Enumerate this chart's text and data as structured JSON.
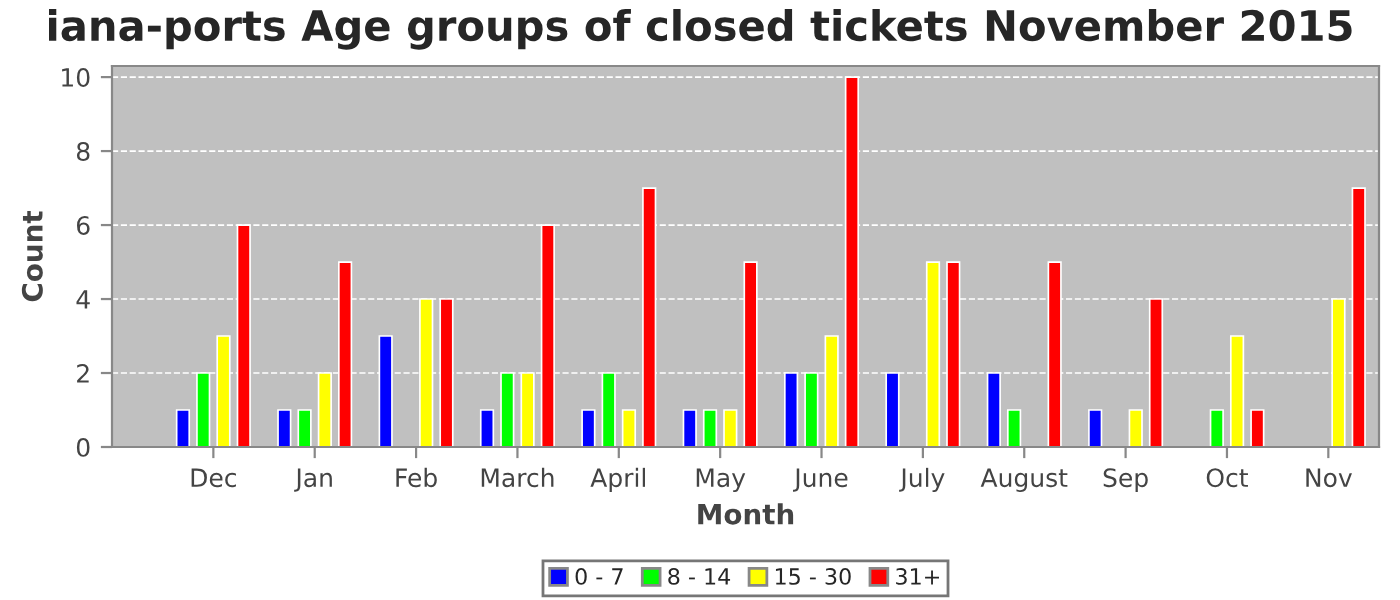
{
  "chart_data": {
    "type": "bar",
    "title": "iana-ports Age groups of closed tickets November 2015",
    "xlabel": "Month",
    "ylabel": "Count",
    "categories": [
      "Dec",
      "Jan",
      "Feb",
      "March",
      "April",
      "May",
      "June",
      "July",
      "August",
      "Sep",
      "Oct",
      "Nov"
    ],
    "series": [
      {
        "name": "0 - 7",
        "color": "#0000ff",
        "values": [
          1,
          1,
          3,
          1,
          1,
          1,
          2,
          2,
          2,
          1,
          null,
          null
        ]
      },
      {
        "name": "8 - 14",
        "color": "#00ff00",
        "values": [
          2,
          1,
          null,
          2,
          2,
          1,
          2,
          null,
          1,
          null,
          1,
          null
        ]
      },
      {
        "name": "15 - 30",
        "color": "#ffff00",
        "values": [
          3,
          2,
          4,
          2,
          1,
          1,
          3,
          5,
          null,
          1,
          3,
          4
        ]
      },
      {
        "name": "31+",
        "color": "#ff0000",
        "values": [
          6,
          5,
          4,
          6,
          7,
          5,
          10,
          5,
          5,
          4,
          1,
          7
        ]
      }
    ],
    "ylim": [
      0,
      10.3
    ],
    "yticks": [
      0,
      2,
      4,
      6,
      8,
      10
    ],
    "grid": "y",
    "legend": "bottom"
  }
}
